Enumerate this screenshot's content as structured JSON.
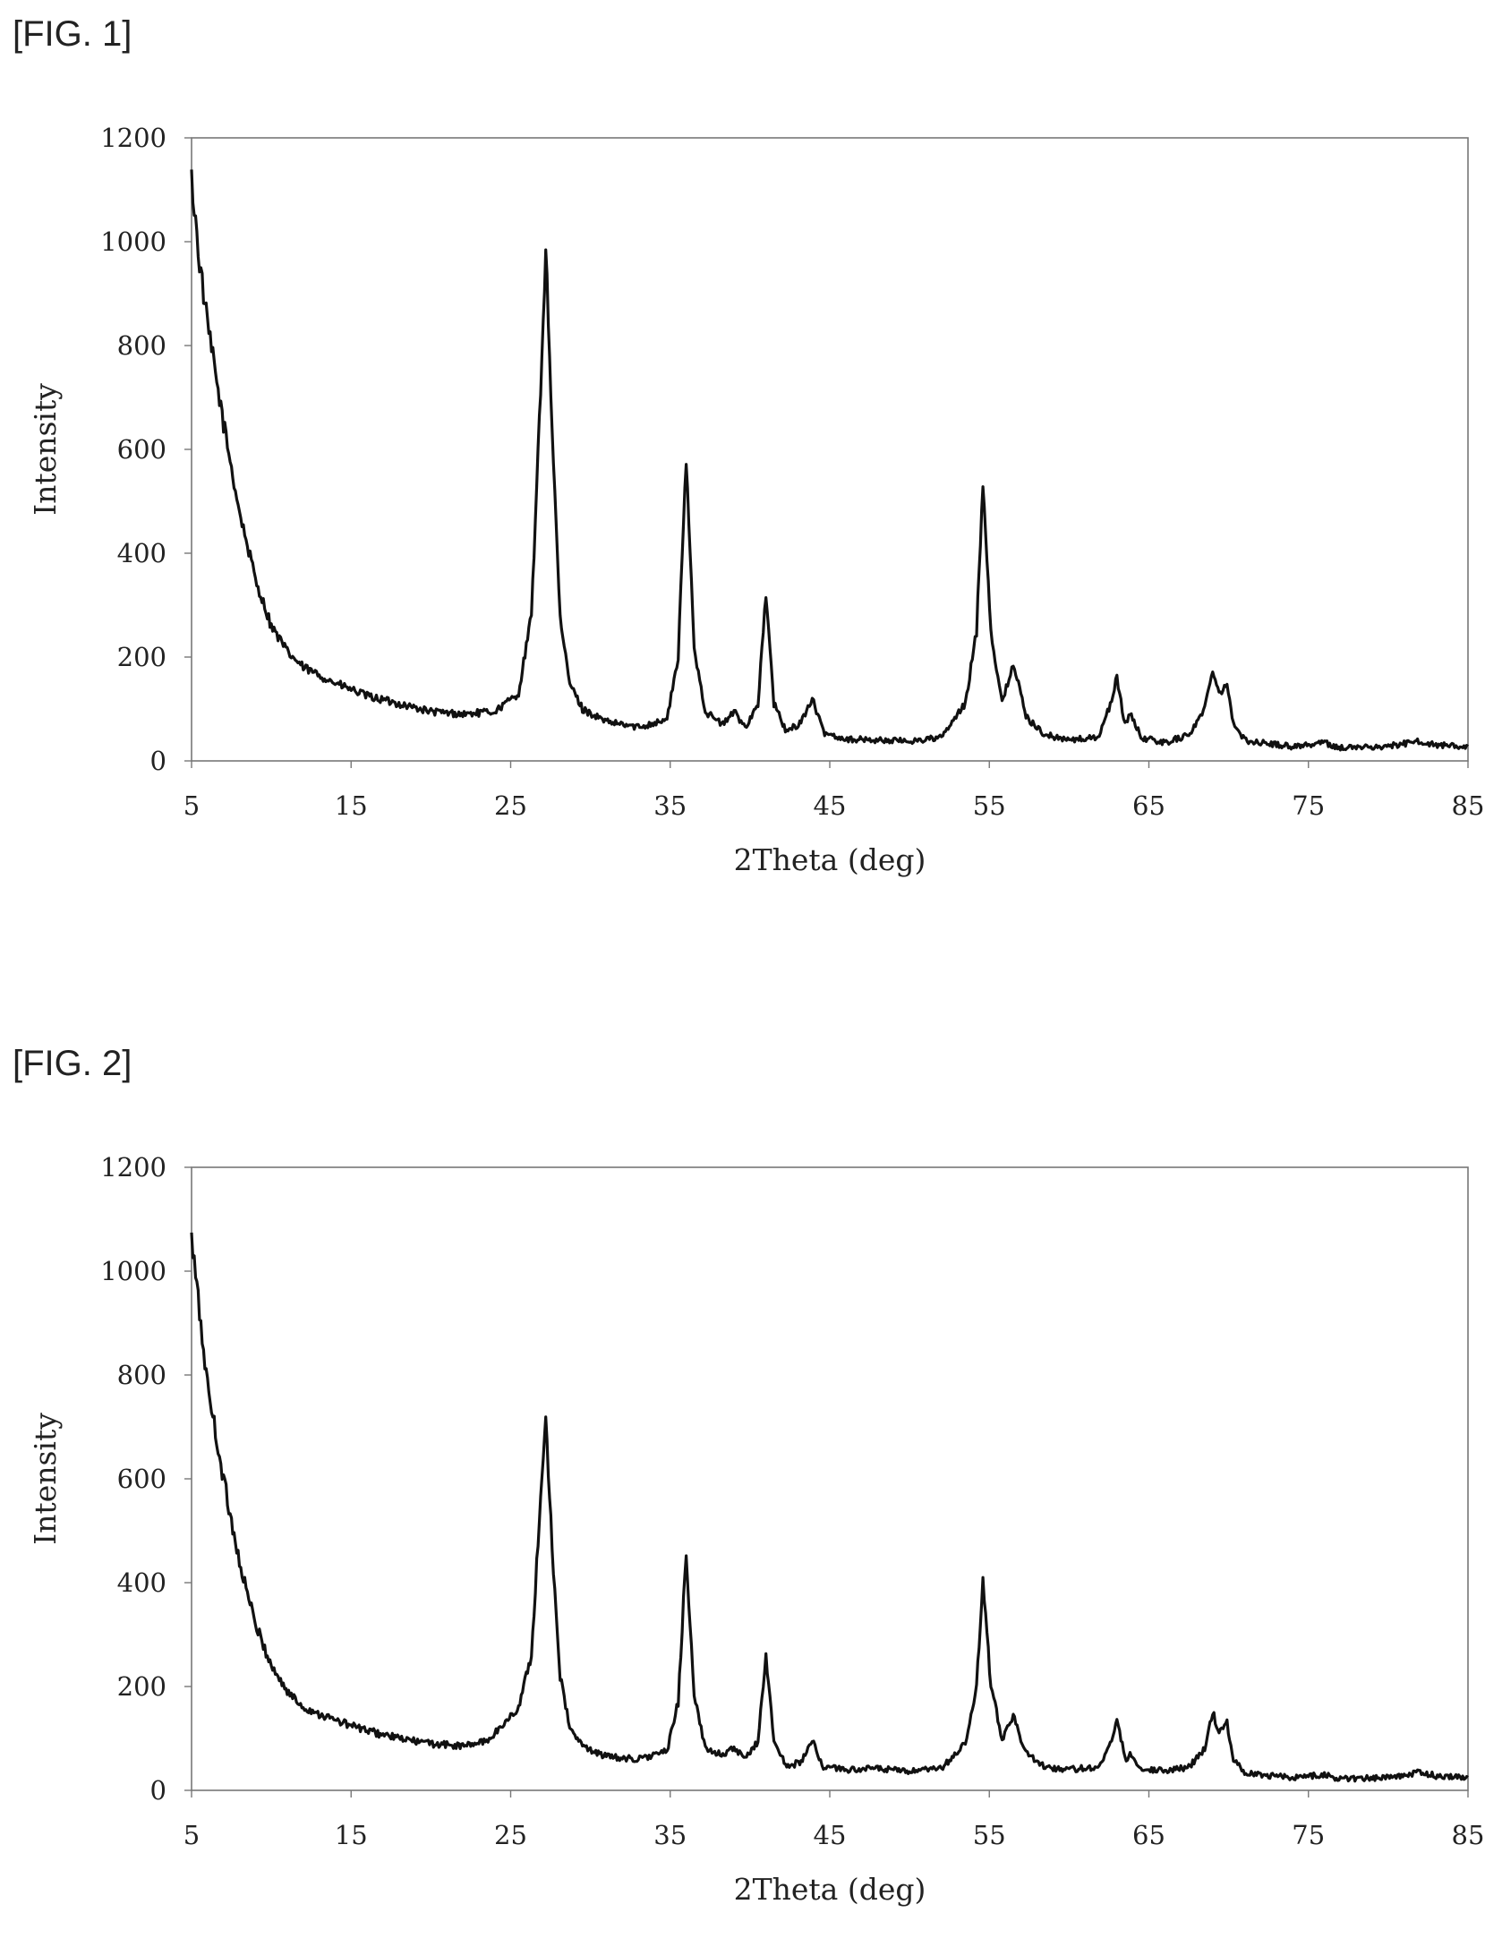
{
  "figures": [
    {
      "label": "[FIG. 1]"
    },
    {
      "label": "[FIG. 2]"
    }
  ],
  "chart_data": [
    {
      "type": "line",
      "title": "",
      "xlabel": "2Theta (deg)",
      "ylabel": "Intensity",
      "xlim": [
        5,
        85
      ],
      "ylim": [
        0,
        1200
      ],
      "xticks": [
        "5",
        "15",
        "25",
        "35",
        "45",
        "55",
        "65",
        "75",
        "85"
      ],
      "yticks": [
        "0",
        "200",
        "400",
        "600",
        "800",
        "1000",
        "1200"
      ],
      "grid": false,
      "legend": "none",
      "line_color": "#111111",
      "series": [
        {
          "x": [
            5,
            5.5,
            6,
            7,
            8,
            9,
            10,
            11,
            12,
            14,
            16,
            18,
            20,
            22,
            24,
            25.5,
            26.3,
            26.8,
            27.2,
            27.6,
            28.1,
            28.7,
            29.5,
            31,
            33,
            34.8,
            35.5,
            36.0,
            36.5,
            37.2,
            38.3,
            39.0,
            39.7,
            40.5,
            41.0,
            41.5,
            42.3,
            43.2,
            43.9,
            44.6,
            46,
            48,
            50,
            52,
            53.5,
            54.2,
            54.6,
            55.1,
            55.8,
            56.5,
            57.3,
            58.5,
            60,
            61.8,
            62.5,
            63.0,
            63.5,
            63.9,
            64.5,
            66,
            67.5,
            68.5,
            69.0,
            69.4,
            69.9,
            70.3,
            71,
            72,
            74,
            76,
            77,
            80,
            82,
            83,
            85
          ],
          "y": [
            1120,
            960,
            840,
            650,
            480,
            350,
            260,
            210,
            180,
            150,
            125,
            110,
            95,
            90,
            95,
            130,
            280,
            650,
            990,
            640,
            270,
            150,
            100,
            75,
            65,
            80,
            200,
            580,
            220,
            95,
            70,
            95,
            65,
            110,
            320,
            110,
            55,
            75,
            120,
            55,
            42,
            40,
            38,
            45,
            110,
            250,
            540,
            250,
            110,
            190,
            85,
            50,
            40,
            45,
            100,
            160,
            70,
            90,
            45,
            35,
            50,
            100,
            180,
            130,
            150,
            70,
            40,
            35,
            28,
            35,
            25,
            28,
            38,
            30,
            28
          ]
        }
      ]
    },
    {
      "type": "line",
      "title": "",
      "xlabel": "2Theta (deg)",
      "ylabel": "Intensity",
      "xlim": [
        5,
        85
      ],
      "ylim": [
        0,
        1200
      ],
      "xticks": [
        "5",
        "15",
        "25",
        "35",
        "45",
        "55",
        "65",
        "75",
        "85"
      ],
      "yticks": [
        "0",
        "200",
        "400",
        "600",
        "800",
        "1000",
        "1200"
      ],
      "grid": false,
      "legend": "none",
      "line_color": "#111111",
      "series": [
        {
          "x": [
            5,
            5.5,
            6,
            7,
            8,
            9,
            10,
            11,
            12,
            14,
            16,
            18,
            20,
            22,
            23.5,
            24.5,
            25.5,
            26.3,
            26.8,
            27.2,
            27.6,
            28.1,
            28.7,
            29.5,
            31,
            33,
            34.8,
            35.5,
            36.0,
            36.5,
            37.2,
            38.3,
            39.0,
            39.7,
            40.5,
            41.0,
            41.5,
            42.3,
            43.2,
            43.9,
            44.6,
            46,
            48,
            50,
            52,
            53.5,
            54.2,
            54.6,
            55.1,
            55.8,
            56.5,
            57.3,
            58.5,
            60,
            61.8,
            62.5,
            63.0,
            63.5,
            63.9,
            64.5,
            66,
            67.5,
            68.5,
            69.0,
            69.4,
            69.9,
            70.3,
            71,
            72,
            74,
            76,
            77,
            80,
            82,
            83,
            85
          ],
          "y": [
            1060,
            920,
            780,
            600,
            440,
            320,
            240,
            190,
            160,
            135,
            115,
            100,
            90,
            85,
            95,
            125,
            160,
            260,
            520,
            720,
            470,
            220,
            120,
            85,
            65,
            60,
            75,
            170,
            460,
            180,
            80,
            70,
            80,
            60,
            95,
            260,
            95,
            45,
            55,
            95,
            45,
            40,
            42,
            36,
            42,
            90,
            200,
            400,
            200,
            100,
            145,
            70,
            45,
            40,
            45,
            80,
            140,
            60,
            70,
            42,
            38,
            45,
            80,
            150,
            110,
            130,
            60,
            35,
            30,
            25,
            30,
            22,
            25,
            35,
            28,
            25
          ]
        }
      ]
    }
  ]
}
